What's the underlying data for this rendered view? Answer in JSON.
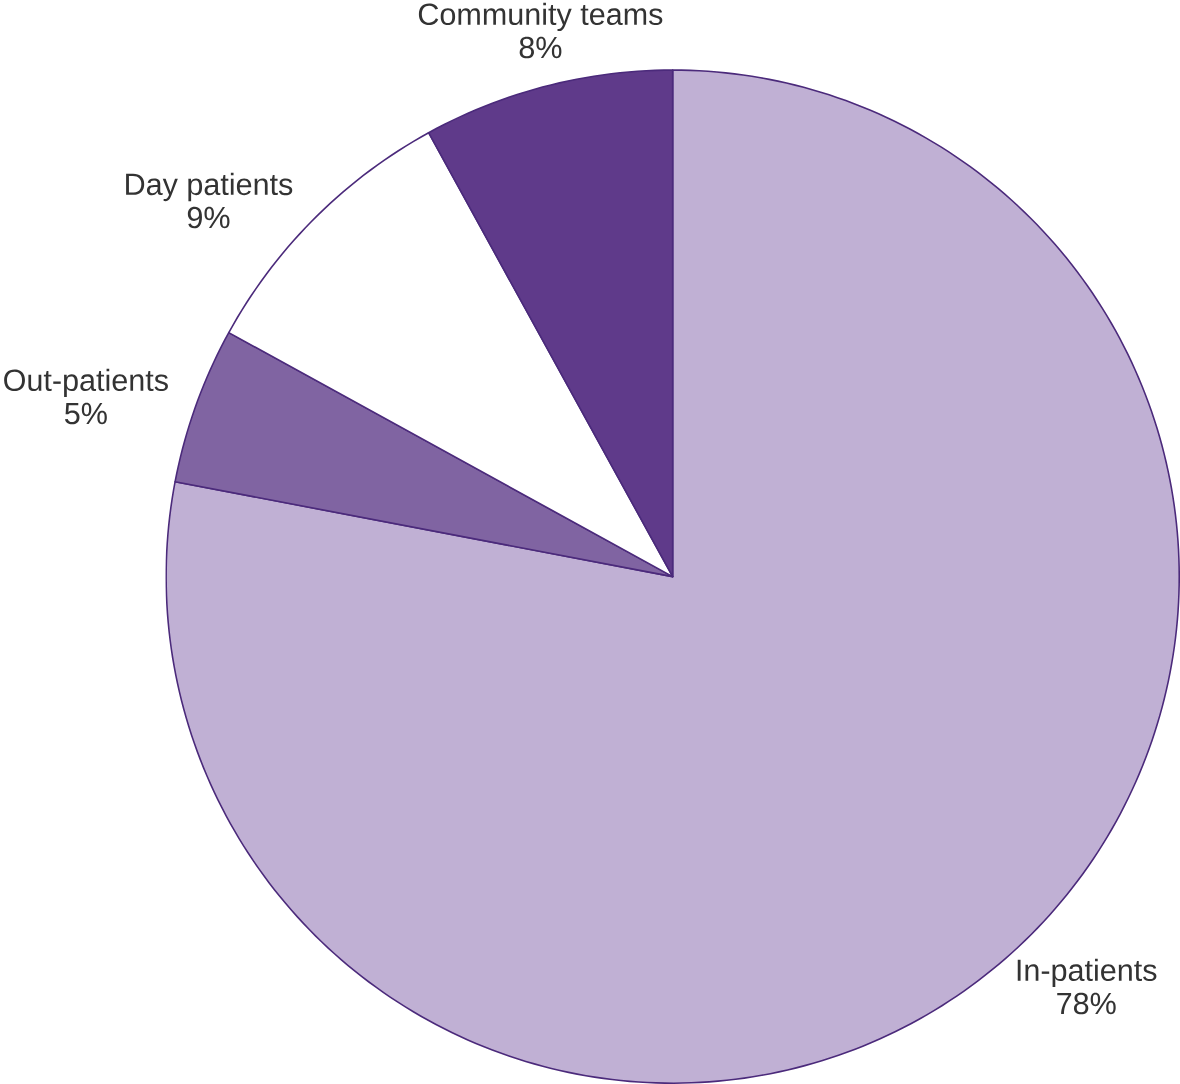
{
  "chart_data": {
    "type": "pie",
    "categories": [
      "In-patients",
      "Out-patients",
      "Day patients",
      "Community teams"
    ],
    "values": [
      78,
      5,
      9,
      8
    ],
    "value_labels": [
      "78%",
      "5%",
      "9%",
      "8%"
    ],
    "colors": [
      "#c0b0d4",
      "#8064a2",
      "#ffffff",
      "#5f3a8a"
    ]
  }
}
